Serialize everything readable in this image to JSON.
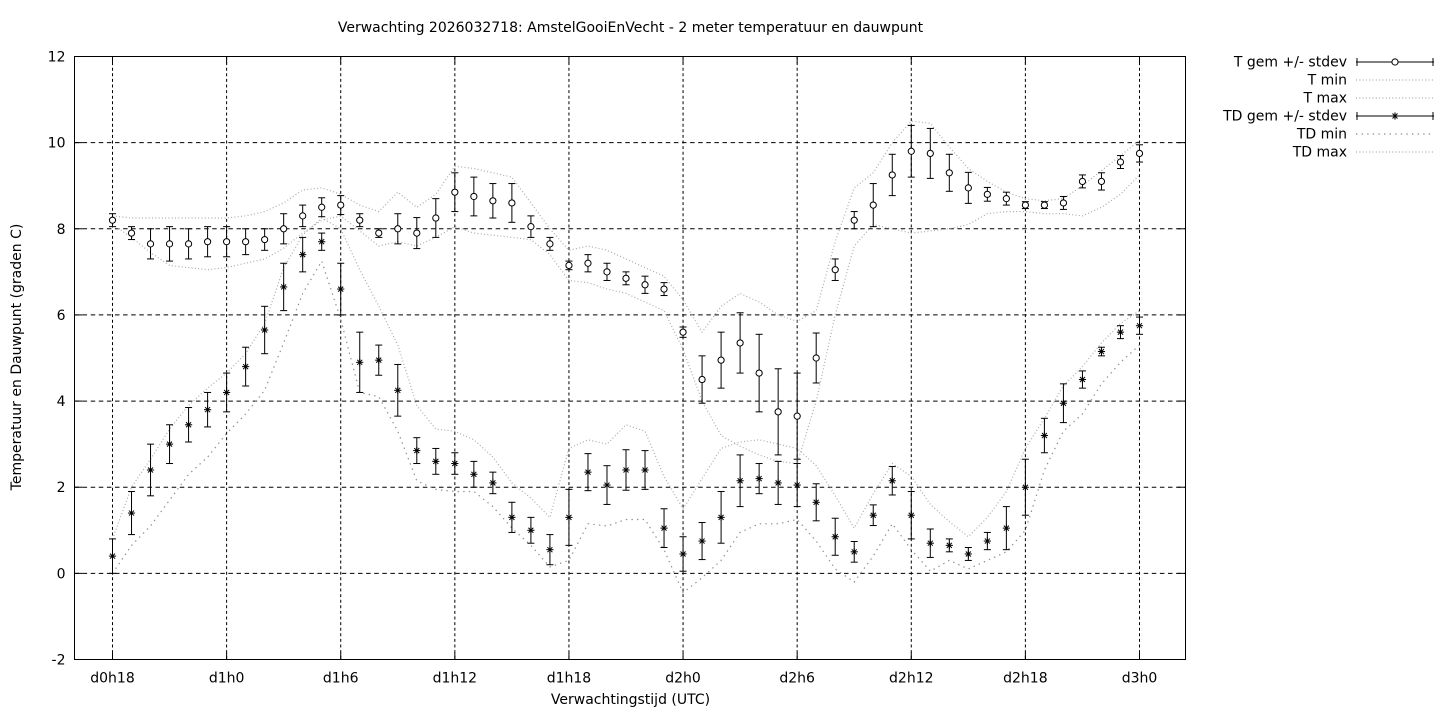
{
  "chart_data": {
    "type": "line",
    "title": "Verwachting 2026032718: AmstelGooiEnVecht - 2 meter temperatuur en dauwpunt",
    "xlabel": "Verwachtingstijd (UTC)",
    "ylabel": "Temperatuur en Dauwpunt (graden C)",
    "ylim": [
      -2,
      12
    ],
    "grid": true,
    "legend_position": "outside-top-right",
    "colors": {
      "series": "#000000",
      "envelope": "#aaaaaa",
      "envelope_dark": "#8e8e8e",
      "background": "#ffffff"
    },
    "y_ticks": [
      {
        "value": 12,
        "label": "12"
      },
      {
        "value": 10,
        "label": "10"
      },
      {
        "value": 8,
        "label": "8"
      },
      {
        "value": 6,
        "label": "6"
      },
      {
        "value": 4,
        "label": "4"
      },
      {
        "value": 2,
        "label": "2"
      },
      {
        "value": 0,
        "label": "0"
      },
      {
        "value": -2,
        "label": "-2"
      }
    ],
    "x_ticks": [
      {
        "hour": 0,
        "label": "d0h18"
      },
      {
        "hour": 6,
        "label": "d1h0"
      },
      {
        "hour": 12,
        "label": "d1h6"
      },
      {
        "hour": 18,
        "label": "d1h12"
      },
      {
        "hour": 24,
        "label": "d1h18"
      },
      {
        "hour": 30,
        "label": "d2h0"
      },
      {
        "hour": 36,
        "label": "d2h6"
      },
      {
        "hour": 42,
        "label": "d2h12"
      },
      {
        "hour": 48,
        "label": "d2h18"
      },
      {
        "hour": 54,
        "label": "d3h0"
      }
    ],
    "x_start_label": "d0h18",
    "x_step_hours": 1,
    "series": [
      {
        "name": "T gem +/- stdev",
        "style": "errorbar",
        "marker": "circle",
        "values": [
          8.2,
          7.9,
          7.65,
          7.65,
          7.65,
          7.7,
          7.7,
          7.7,
          7.75,
          8.0,
          8.3,
          8.5,
          8.55,
          8.2,
          7.9,
          8.0,
          7.9,
          8.25,
          8.85,
          8.75,
          8.65,
          8.6,
          8.05,
          7.65,
          7.15,
          7.2,
          7.0,
          6.85,
          6.7,
          6.6,
          5.6,
          4.5,
          4.95,
          5.35,
          4.65,
          3.75,
          3.65,
          5.0,
          7.05,
          8.2,
          8.55,
          9.25,
          9.8,
          9.75,
          9.3,
          8.95,
          8.8,
          8.7,
          8.55,
          8.55,
          8.6,
          9.1,
          9.1,
          9.55,
          9.75
        ],
        "stdev": [
          0.15,
          0.15,
          0.35,
          0.4,
          0.35,
          0.35,
          0.35,
          0.3,
          0.25,
          0.35,
          0.25,
          0.22,
          0.22,
          0.15,
          0.1,
          0.35,
          0.36,
          0.45,
          0.45,
          0.45,
          0.4,
          0.45,
          0.25,
          0.15,
          0.1,
          0.2,
          0.2,
          0.15,
          0.2,
          0.15,
          0.12,
          0.55,
          0.65,
          0.7,
          0.9,
          1.0,
          1.0,
          0.58,
          0.25,
          0.2,
          0.5,
          0.48,
          0.6,
          0.58,
          0.43,
          0.36,
          0.16,
          0.15,
          0.08,
          0.08,
          0.15,
          0.15,
          0.2,
          0.15,
          0.2
        ]
      },
      {
        "name": "T min",
        "style": "dotted",
        "values": [
          8.1,
          7.8,
          7.45,
          7.15,
          7.1,
          7.05,
          7.1,
          7.2,
          7.3,
          7.55,
          7.9,
          8.2,
          8.3,
          7.95,
          7.6,
          7.7,
          7.6,
          7.8,
          8.05,
          7.9,
          7.85,
          7.8,
          7.75,
          7.4,
          6.8,
          6.75,
          6.6,
          6.5,
          6.3,
          6.1,
          5.2,
          4.0,
          3.2,
          2.95,
          2.75,
          2.6,
          2.55,
          4.0,
          6.0,
          7.6,
          8.1,
          8.0,
          7.9,
          7.95,
          8.0,
          8.1,
          8.35,
          8.4,
          8.4,
          8.35,
          8.35,
          8.3,
          8.5,
          8.8,
          9.25
        ]
      },
      {
        "name": "T max",
        "style": "dotted",
        "values": [
          8.3,
          8.25,
          8.25,
          8.25,
          8.25,
          8.25,
          8.25,
          8.3,
          8.4,
          8.6,
          8.9,
          8.95,
          8.8,
          8.55,
          8.4,
          8.85,
          8.5,
          8.8,
          9.45,
          9.4,
          9.3,
          9.2,
          8.6,
          8.0,
          7.5,
          7.6,
          7.5,
          7.3,
          7.1,
          6.9,
          6.35,
          5.6,
          6.2,
          6.5,
          6.3,
          6.0,
          5.85,
          6.1,
          7.7,
          8.95,
          9.3,
          10.0,
          10.5,
          10.45,
          9.9,
          9.4,
          9.1,
          8.85,
          8.7,
          8.65,
          8.7,
          9.0,
          9.35,
          9.7,
          10.05
        ]
      },
      {
        "name": "TD gem +/- stdev",
        "style": "errorbar",
        "marker": "asterisk",
        "values": [
          0.4,
          1.4,
          2.4,
          3.0,
          3.45,
          3.8,
          4.2,
          4.8,
          5.65,
          6.65,
          7.4,
          7.7,
          6.6,
          4.9,
          4.95,
          4.25,
          2.85,
          2.6,
          2.55,
          2.3,
          2.1,
          1.3,
          1.0,
          0.55,
          1.3,
          2.35,
          2.05,
          2.4,
          2.4,
          1.05,
          0.45,
          0.75,
          1.3,
          2.15,
          2.2,
          2.1,
          2.05,
          1.65,
          0.85,
          0.5,
          1.35,
          2.15,
          1.35,
          0.7,
          0.65,
          0.45,
          0.75,
          1.05,
          2.0,
          3.2,
          3.95,
          4.5,
          5.15,
          5.6,
          5.75
        ],
        "stdev": [
          0.4,
          0.5,
          0.6,
          0.45,
          0.4,
          0.4,
          0.45,
          0.45,
          0.55,
          0.55,
          0.4,
          0.2,
          0.6,
          0.7,
          0.35,
          0.6,
          0.3,
          0.3,
          0.25,
          0.3,
          0.25,
          0.35,
          0.3,
          0.35,
          0.65,
          0.43,
          0.45,
          0.47,
          0.45,
          0.45,
          0.4,
          0.43,
          0.6,
          0.6,
          0.35,
          0.5,
          0.5,
          0.43,
          0.43,
          0.24,
          0.24,
          0.33,
          0.55,
          0.33,
          0.15,
          0.15,
          0.2,
          0.5,
          0.65,
          0.4,
          0.45,
          0.2,
          0.1,
          0.15,
          0.2
        ]
      },
      {
        "name": "TD min",
        "style": "dotted-sparse",
        "values": [
          0.0,
          0.65,
          1.1,
          1.7,
          2.3,
          2.7,
          3.25,
          3.7,
          4.25,
          5.35,
          6.5,
          7.25,
          5.9,
          4.2,
          4.1,
          3.3,
          2.15,
          1.95,
          1.9,
          1.9,
          1.55,
          1.05,
          0.65,
          0.15,
          0.3,
          1.15,
          1.1,
          1.25,
          1.25,
          0.55,
          -0.45,
          -0.1,
          0.3,
          0.95,
          1.15,
          1.15,
          1.25,
          0.75,
          0.1,
          -0.2,
          0.4,
          1.15,
          0.55,
          0.05,
          0.3,
          0.1,
          0.3,
          0.5,
          1.0,
          2.4,
          3.3,
          3.7,
          4.4,
          4.9,
          5.3
        ]
      },
      {
        "name": "TD max",
        "style": "dotted",
        "values": [
          0.8,
          2.0,
          2.65,
          3.35,
          3.9,
          4.3,
          4.65,
          5.1,
          5.8,
          7.1,
          7.85,
          8.25,
          8.0,
          7.05,
          6.2,
          5.3,
          3.9,
          3.35,
          3.3,
          3.1,
          2.7,
          2.1,
          1.75,
          1.3,
          2.9,
          3.1,
          3.0,
          3.45,
          3.3,
          2.25,
          1.5,
          2.2,
          2.9,
          3.05,
          3.1,
          3.0,
          2.9,
          2.5,
          1.8,
          1.05,
          1.85,
          2.55,
          2.25,
          1.6,
          1.2,
          0.85,
          1.3,
          1.9,
          2.9,
          3.6,
          4.35,
          4.8,
          5.35,
          5.8,
          6.1
        ]
      }
    ]
  }
}
